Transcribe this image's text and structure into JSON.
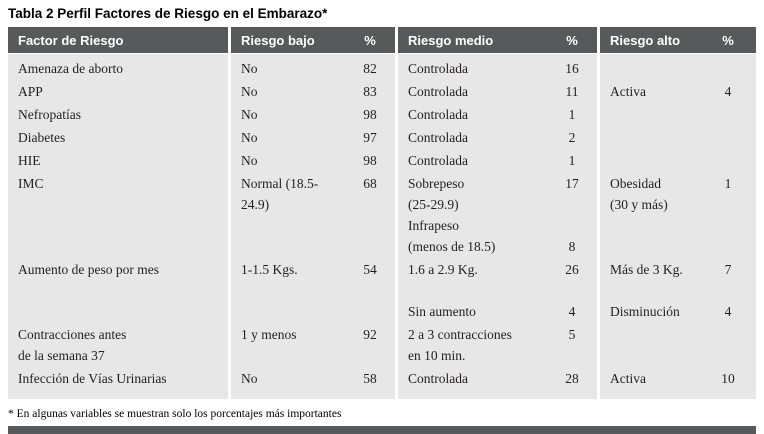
{
  "title": "Tabla 2 Perfil Factores de Riesgo en el Embarazo*",
  "footnote": "* En algunas variables se muestran solo los porcentajes más importantes",
  "colors": {
    "page_bg": "#ffffff",
    "header_bg": "#58595b",
    "header_text": "#ffffff",
    "body_bg": "#e7e7e8",
    "body_text": "#231f20",
    "bottom_bar": "#58595b"
  },
  "table": {
    "column_groups": [
      {
        "label": "Factor de Riesgo",
        "pct": null
      },
      {
        "label": "Riesgo bajo",
        "pct": "%"
      },
      {
        "label": "Riesgo medio",
        "pct": "%"
      },
      {
        "label": "Riesgo alto",
        "pct": "%"
      }
    ],
    "rows": [
      [
        [
          "Amenaza de aborto"
        ],
        [
          "No"
        ],
        [
          "82"
        ],
        [
          "Controlada"
        ],
        [
          "16"
        ],
        [],
        []
      ],
      [
        [
          "APP"
        ],
        [
          "No"
        ],
        [
          "83"
        ],
        [
          "Controlada"
        ],
        [
          "11"
        ],
        [
          "Activa"
        ],
        [
          "4"
        ]
      ],
      [
        [
          "Nefropatías"
        ],
        [
          "No"
        ],
        [
          "98"
        ],
        [
          "Controlada"
        ],
        [
          "1"
        ],
        [],
        []
      ],
      [
        [
          "Diabetes"
        ],
        [
          "No"
        ],
        [
          "97"
        ],
        [
          "Controlada"
        ],
        [
          "2"
        ],
        [],
        []
      ],
      [
        [
          "HIE"
        ],
        [
          "No"
        ],
        [
          "98"
        ],
        [
          "Controlada"
        ],
        [
          "1"
        ],
        [],
        []
      ],
      [
        [
          "IMC"
        ],
        [
          "Normal (18.5-",
          "24.9)"
        ],
        [
          "68"
        ],
        [
          "Sobrepeso",
          "(25-29.9)",
          "Infrapeso",
          "(menos de 18.5)"
        ],
        [
          "17",
          "",
          "",
          "8"
        ],
        [
          "Obesidad",
          "(30 y más)"
        ],
        [
          "1"
        ]
      ],
      [
        [
          "Aumento de peso por mes"
        ],
        [
          "1-1.5 Kgs."
        ],
        [
          "54"
        ],
        [
          "1.6 a 2.9 Kg.",
          "",
          "Sin aumento"
        ],
        [
          "26",
          "",
          "4"
        ],
        [
          "Más de 3 Kg.",
          "",
          "Disminución"
        ],
        [
          "7",
          "",
          "4"
        ]
      ],
      [
        [
          "Contracciones antes",
          "de la semana 37"
        ],
        [
          "1 y menos"
        ],
        [
          "92"
        ],
        [
          "2 a 3 contracciones",
          "en 10 min."
        ],
        [
          "5"
        ],
        [],
        []
      ],
      [
        [
          "Infección de Vías Urinarias"
        ],
        [
          "No"
        ],
        [
          "58"
        ],
        [
          "Controlada"
        ],
        [
          "28"
        ],
        [
          "Activa"
        ],
        [
          "10"
        ]
      ]
    ]
  }
}
